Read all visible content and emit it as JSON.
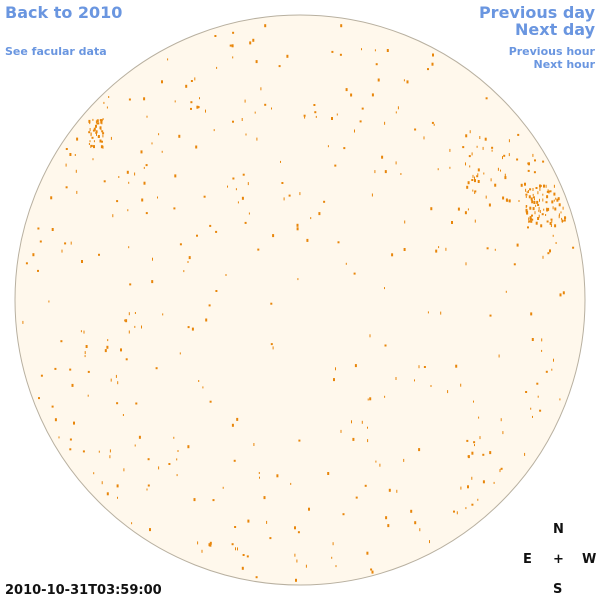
{
  "nav": {
    "back_label": "Back to 2010",
    "facular_label": "See facular data",
    "prev_day_label": "Previous day",
    "next_day_label": "Next day",
    "prev_hour_label": "Previous hour",
    "next_hour_label": "Next hour"
  },
  "timestamp": "2010-10-31T03:59:00",
  "compass": {
    "north": "N",
    "east": "E",
    "center": "+",
    "west": "W",
    "south": "S"
  },
  "colors": {
    "disk_fill": "#fff8ec",
    "disk_edge": "#b8b0a0",
    "facula": "#e8860a",
    "link": "#6a96e0"
  }
}
